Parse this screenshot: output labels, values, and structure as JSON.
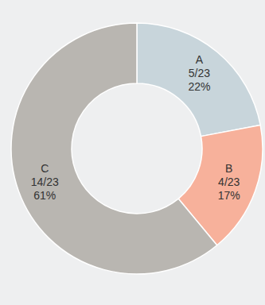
{
  "chart_data": {
    "type": "pie",
    "categories": [
      "A",
      "B",
      "C"
    ],
    "values": [
      22,
      17,
      61
    ],
    "value_labels": [
      "22%",
      "17%",
      "61%"
    ],
    "fractions": [
      "5/23",
      "4/23",
      "14/23"
    ],
    "colors": [
      "#c8d5db",
      "#f7b19b",
      "#b9b6b1"
    ],
    "data_labels": true
  }
}
